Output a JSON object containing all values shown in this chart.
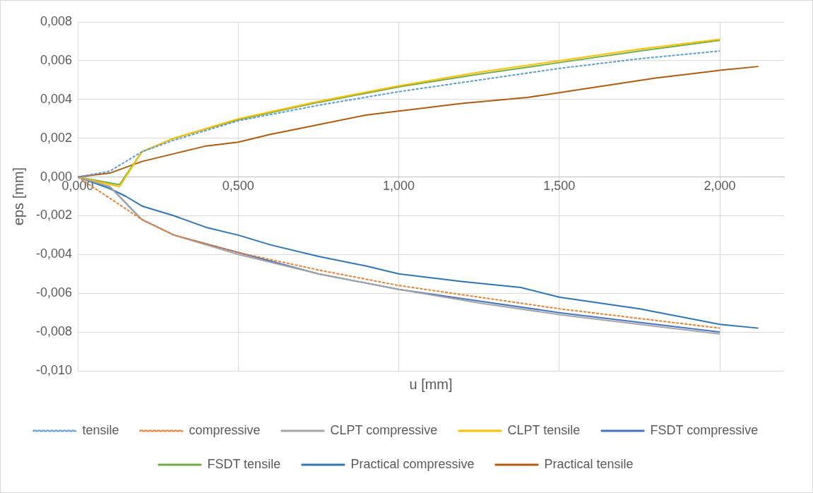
{
  "chart_data": {
    "type": "line",
    "xlabel": "u [mm]",
    "ylabel": "eps [mm]",
    "grid": true,
    "legend": "bottom",
    "marker": "none",
    "xlim": [
      0,
      2.2
    ],
    "xticks": [
      {
        "value": 0,
        "label": "0,000"
      },
      {
        "value": 0.5,
        "label": "0,500"
      },
      {
        "value": 1,
        "label": "1,000"
      },
      {
        "value": 1.5,
        "label": "1,500"
      },
      {
        "value": 2,
        "label": "2,000"
      }
    ],
    "ylim": [
      -0.01,
      0.008
    ],
    "yticks": [
      {
        "value": -0.01,
        "label": "-0,010"
      },
      {
        "value": -0.008,
        "label": "-0,008"
      },
      {
        "value": -0.006,
        "label": "-0,006"
      },
      {
        "value": -0.004,
        "label": "-0,004"
      },
      {
        "value": -0.002,
        "label": "-0,002"
      },
      {
        "value": 0,
        "label": "0,000"
      },
      {
        "value": 0.002,
        "label": "0,002"
      },
      {
        "value": 0.004,
        "label": "0,004"
      },
      {
        "value": 0.006,
        "label": "0,006"
      },
      {
        "value": 0.008,
        "label": "0,008"
      }
    ],
    "series": [
      {
        "name": "tensile",
        "color": "#5b9bd5",
        "line_style": "dashed",
        "x": [
          0,
          0.1,
          0.2,
          0.3,
          0.5,
          0.75,
          1,
          1.25,
          1.5,
          1.75,
          2
        ],
        "values": [
          0,
          0.0003,
          0.0013,
          0.0019,
          0.0029,
          0.0037,
          0.0044,
          0.005,
          0.0056,
          0.0061,
          0.0065
        ]
      },
      {
        "name": "compressive",
        "color": "#ed7d31",
        "line_style": "dashed",
        "x": [
          0,
          0.2,
          0.3,
          0.5,
          0.75,
          1,
          1.25,
          1.5,
          1.75,
          2
        ],
        "values": [
          0,
          -0.0022,
          -0.003,
          -0.0039,
          -0.0048,
          -0.0056,
          -0.0062,
          -0.0068,
          -0.0073,
          -0.0078
        ]
      },
      {
        "name": "CLPT compressive",
        "color": "#a5a5a5",
        "line_style": "solid",
        "x": [
          0,
          0.1,
          0.2,
          0.3,
          0.5,
          0.75,
          1,
          1.25,
          1.5,
          1.75,
          2
        ],
        "values": [
          0,
          -0.0005,
          -0.0022,
          -0.003,
          -0.004,
          -0.005,
          -0.0058,
          -0.0065,
          -0.0071,
          -0.0076,
          -0.0081
        ]
      },
      {
        "name": "CLPT tensile",
        "color": "#ffc000",
        "line_style": "solid",
        "x": [
          0,
          0.13,
          0.2,
          0.3,
          0.5,
          0.75,
          1,
          1.25,
          1.5,
          1.75,
          2
        ],
        "values": [
          0,
          -0.0005,
          0.0013,
          0.002,
          0.003,
          0.0039,
          0.0047,
          0.0054,
          0.006,
          0.0066,
          0.0071
        ]
      },
      {
        "name": "FSDT compressive",
        "color": "#4472c4",
        "line_style": "solid",
        "x": [
          0,
          0.1,
          0.2,
          0.3,
          0.5,
          0.75,
          1,
          1.25,
          1.5,
          1.75,
          2
        ],
        "values": [
          0,
          -0.0005,
          -0.0022,
          -0.003,
          -0.0039,
          -0.005,
          -0.0058,
          -0.0064,
          -0.007,
          -0.0075,
          -0.008
        ]
      },
      {
        "name": "FSDT tensile",
        "color": "#70ad47",
        "line_style": "solid",
        "x": [
          0,
          0.13,
          0.2,
          0.3,
          0.5,
          0.75,
          1,
          1.25,
          1.5,
          1.75,
          2
        ],
        "values": [
          0,
          -0.0004,
          0.0013,
          0.002,
          0.00295,
          0.00385,
          0.00465,
          0.0053,
          0.0059,
          0.0065,
          0.00705
        ]
      },
      {
        "name": "Practical compressive",
        "color": "#2e75b6",
        "line_style": "solid",
        "x": [
          0,
          0.1,
          0.15,
          0.2,
          0.3,
          0.4,
          0.5,
          0.6,
          0.75,
          0.9,
          1,
          1.2,
          1.38,
          1.5,
          1.75,
          2,
          2.12
        ],
        "values": [
          0,
          -0.0006,
          -0.001,
          -0.0015,
          -0.002,
          -0.0026,
          -0.003,
          -0.0035,
          -0.0041,
          -0.0046,
          -0.005,
          -0.0054,
          -0.0057,
          -0.0062,
          -0.0068,
          -0.0076,
          -0.0078
        ]
      },
      {
        "name": "Practical tensile",
        "color": "#b35b0c",
        "line_style": "solid",
        "x": [
          0,
          0.1,
          0.2,
          0.3,
          0.4,
          0.5,
          0.6,
          0.75,
          0.9,
          1,
          1.2,
          1.4,
          1.6,
          1.8,
          2,
          2.12
        ],
        "values": [
          0,
          0.0002,
          0.0008,
          0.0012,
          0.0016,
          0.0018,
          0.0022,
          0.0027,
          0.0032,
          0.0034,
          0.0038,
          0.0041,
          0.0046,
          0.0051,
          0.0055,
          0.0057
        ]
      }
    ]
  }
}
